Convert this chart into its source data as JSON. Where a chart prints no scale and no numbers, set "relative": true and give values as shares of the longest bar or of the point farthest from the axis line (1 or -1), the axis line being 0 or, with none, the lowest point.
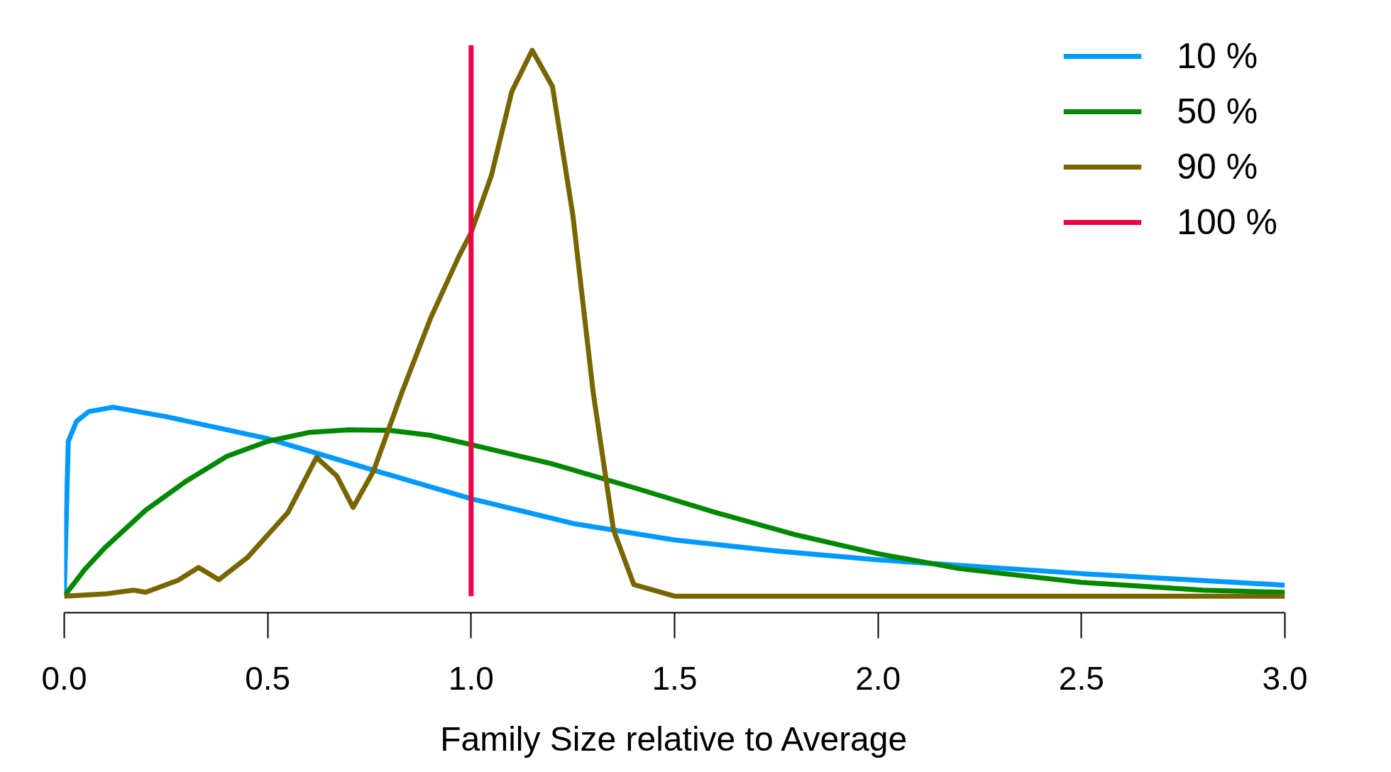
{
  "chart_data": {
    "type": "line",
    "relative": true,
    "xlabel": "Family Size relative to Average",
    "xlim": [
      0,
      3
    ],
    "xticks": [
      {
        "value": 0,
        "label": "0.0"
      },
      {
        "value": 0.5,
        "label": "0.5"
      },
      {
        "value": 1,
        "label": "1.0"
      },
      {
        "value": 1.5,
        "label": "1.5"
      },
      {
        "value": 2,
        "label": "2.0"
      },
      {
        "value": 2.5,
        "label": "2.5"
      },
      {
        "value": 3,
        "label": "3.0"
      }
    ],
    "series": [
      {
        "name": "10 %",
        "color": "#0099ff",
        "x": [
          0,
          0.01,
          0.03,
          0.06,
          0.12,
          0.25,
          0.5,
          0.75,
          1.0,
          1.25,
          1.5,
          1.75,
          2.0,
          2.5,
          3.0
        ],
        "values": [
          0,
          0.281,
          0.317,
          0.335,
          0.343,
          0.326,
          0.286,
          0.231,
          0.177,
          0.132,
          0.102,
          0.082,
          0.066,
          0.041,
          0.02
        ]
      },
      {
        "name": "50 %",
        "color": "#008800",
        "x": [
          0,
          0.05,
          0.1,
          0.2,
          0.3,
          0.4,
          0.5,
          0.6,
          0.7,
          0.8,
          0.9,
          1.0,
          1.2,
          1.4,
          1.6,
          1.8,
          2.0,
          2.2,
          2.5,
          2.8,
          3.0
        ],
        "values": [
          0,
          0.048,
          0.088,
          0.156,
          0.209,
          0.254,
          0.281,
          0.297,
          0.302,
          0.301,
          0.292,
          0.275,
          0.24,
          0.197,
          0.152,
          0.111,
          0.077,
          0.05,
          0.025,
          0.011,
          0.007
        ]
      },
      {
        "name": "90 %",
        "color": "#776600",
        "x": [
          0,
          0.1,
          0.17,
          0.2,
          0.28,
          0.33,
          0.38,
          0.45,
          0.5,
          0.55,
          0.62,
          0.67,
          0.71,
          0.76,
          0.83,
          0.9,
          0.97,
          1.0,
          1.05,
          1.1,
          1.15,
          1.2,
          1.25,
          1.3,
          1.35,
          1.4,
          1.5,
          3.0
        ],
        "values": [
          0,
          0.004,
          0.011,
          0.007,
          0.029,
          0.052,
          0.03,
          0.07,
          0.111,
          0.152,
          0.252,
          0.218,
          0.161,
          0.227,
          0.37,
          0.504,
          0.617,
          0.66,
          0.764,
          0.916,
          0.991,
          0.925,
          0.692,
          0.37,
          0.12,
          0.021,
          0,
          0
        ]
      },
      {
        "name": "100 %",
        "color": "#ee0044",
        "x": [
          1,
          1
        ],
        "values": [
          0,
          1.0
        ]
      }
    ],
    "legend": "top right",
    "grid": false
  }
}
